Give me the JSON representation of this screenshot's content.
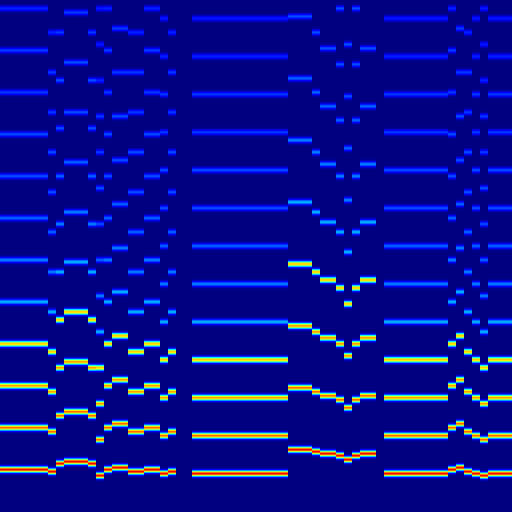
{
  "chart_data": {
    "type": "spectrogram",
    "x": [
      4,
      12,
      20,
      28,
      36,
      44,
      52,
      60,
      68,
      76,
      84,
      92,
      100,
      108,
      116,
      124,
      132,
      140,
      148,
      156,
      164,
      172,
      180,
      188,
      196,
      204,
      212,
      220,
      228,
      236,
      244,
      252,
      260,
      268,
      276,
      284,
      292,
      300,
      308,
      316,
      324,
      332,
      340,
      348,
      356,
      364,
      372,
      380,
      388,
      396,
      404,
      412,
      420,
      428,
      436,
      444,
      452,
      460,
      468,
      476,
      484,
      492,
      500,
      508
    ],
    "values": [
      42,
      42,
      42,
      42,
      42,
      42,
      40,
      48,
      50,
      50,
      50,
      48,
      36,
      42,
      44,
      44,
      40,
      40,
      42,
      42,
      38,
      40,
      null,
      null,
      38,
      38,
      38,
      38,
      38,
      38,
      38,
      38,
      38,
      38,
      38,
      38,
      62,
      62,
      62,
      60,
      58,
      58,
      56,
      52,
      56,
      58,
      58,
      null,
      38,
      38,
      38,
      38,
      38,
      38,
      38,
      38,
      42,
      44,
      40,
      38,
      36,
      38,
      38,
      38
    ],
    "harmonics": [
      1,
      2,
      3,
      4,
      5,
      6,
      7,
      8,
      9,
      10,
      11,
      12,
      13,
      14
    ],
    "levels": [
      0.9,
      0.8,
      0.75,
      0.7,
      0.3,
      0.25,
      0.22,
      0.2,
      0.2,
      0.18,
      0.18,
      0.16,
      0.15,
      0.15
    ],
    "zlim": [
      0,
      1
    ],
    "xlim": [
      0,
      512
    ],
    "ylim": [
      0,
      512
    ],
    "tick_labels": false
  }
}
